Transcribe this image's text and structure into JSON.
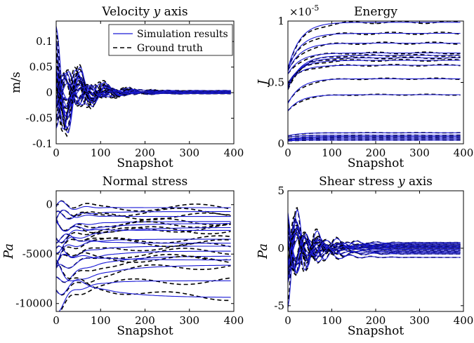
{
  "colors": {
    "sim": "#1a1ad6",
    "truth": "#000000",
    "axis": "#000000"
  },
  "legend": {
    "sim_label": "Simulation results",
    "truth_label": "Ground truth",
    "placement": "top-right of first panel"
  },
  "chart_data": [
    {
      "type": "line",
      "title_pre": "Velocity ",
      "title_var": "y",
      "title_post": " axis",
      "xlabel": "Snapshot",
      "ylabel": "m/s",
      "xlim": [
        0,
        400
      ],
      "ylim": [
        -0.1,
        0.14
      ],
      "xticks": [
        0,
        100,
        200,
        300,
        400
      ],
      "yticks": [
        -0.1,
        -0.05,
        0,
        0.05,
        0.1
      ],
      "ytick_labels": [
        "-0.1",
        "-0.05",
        "0",
        "0.05",
        "0.1"
      ],
      "signal": {
        "kind": "oscillation",
        "amplitudes": [
          0.13,
          0.08,
          0.06,
          0.1,
          -0.07,
          0.05,
          -0.04,
          0.09,
          0.03,
          -0.06,
          0.07,
          0.04,
          -0.03,
          0.11,
          0.02,
          -0.05
        ],
        "decay": 55,
        "period": 55,
        "final": [
          0.003,
          0.001,
          -0.002,
          0.002,
          0,
          0.004,
          -0.001,
          0.002,
          0.001,
          0,
          0.003,
          -0.002,
          0.001,
          0.002,
          0,
          0.001
        ]
      }
    },
    {
      "type": "line",
      "title_pre": "Energy",
      "title_var": "",
      "title_post": "",
      "xlabel": "Snapshot",
      "ylabel": "J",
      "exponent_label": "×10",
      "exponent_power": "-5",
      "xlim": [
        0,
        400
      ],
      "ylim": [
        0,
        1.0
      ],
      "xticks": [
        0,
        100,
        200,
        300,
        400
      ],
      "yticks": [
        0,
        0.5,
        1
      ],
      "ytick_labels": [
        "0",
        "0.5",
        "1"
      ],
      "signal": {
        "kind": "saturating",
        "final": [
          0.99,
          0.9,
          0.82,
          0.74,
          0.72,
          0.7,
          0.68,
          0.64,
          0.53,
          0.4,
          0.09,
          0.07,
          0.06,
          0.05,
          0.04,
          0.03
        ],
        "start_ratio": 0.62,
        "rate": 28
      }
    },
    {
      "type": "line",
      "title_pre": "Normal stress",
      "title_var": "",
      "title_post": "",
      "xlabel": "Snapshot",
      "ylabel": "Pa",
      "xlim": [
        0,
        400
      ],
      "ylim": [
        -10800,
        1400
      ],
      "xticks": [
        0,
        100,
        200,
        300,
        400
      ],
      "yticks": [
        -10000,
        -5000,
        0
      ],
      "ytick_labels": [
        "-10000",
        "-5000",
        "0"
      ],
      "signal": {
        "kind": "drifting",
        "starts": [
          -200,
          -1500,
          -2500,
          -3500,
          -4200,
          -5200,
          -6000,
          -7000,
          -8200,
          -9000,
          -10500,
          -3000,
          -1000,
          -4800,
          -6500,
          -2000
        ],
        "finals": [
          -300,
          -700,
          -1700,
          -1900,
          -2300,
          -3500,
          -4200,
          -4700,
          -5200,
          -6100,
          -7700,
          -3900,
          -1200,
          -5600,
          -9400,
          -2600
        ]
      }
    },
    {
      "type": "line",
      "title_pre": "Shear stress ",
      "title_var": "y",
      "title_post": " axis",
      "xlabel": "Snapshot",
      "ylabel": "Pa",
      "xlim": [
        0,
        400
      ],
      "ylim": [
        -5.5,
        5
      ],
      "xticks": [
        0,
        100,
        200,
        300,
        400
      ],
      "yticks": [
        -5,
        0,
        5
      ],
      "ytick_labels": [
        "-5",
        "0",
        "5"
      ],
      "signal": {
        "kind": "oscillation",
        "amplitudes": [
          -5.2,
          3.0,
          -3.5,
          2.4,
          -2.8,
          1.8,
          -4.0,
          2.7,
          -1.5,
          3.3,
          -2.2,
          1.2,
          -3.0,
          2.0,
          -1.8,
          2.5
        ],
        "decay": 45,
        "period": 45,
        "final": [
          0.5,
          -0.8,
          0.3,
          -0.3,
          0.2,
          0.1,
          -0.5,
          0.4,
          0,
          -0.2,
          0.3,
          -0.1,
          0.2,
          -0.4,
          0.1,
          0
        ]
      }
    }
  ]
}
